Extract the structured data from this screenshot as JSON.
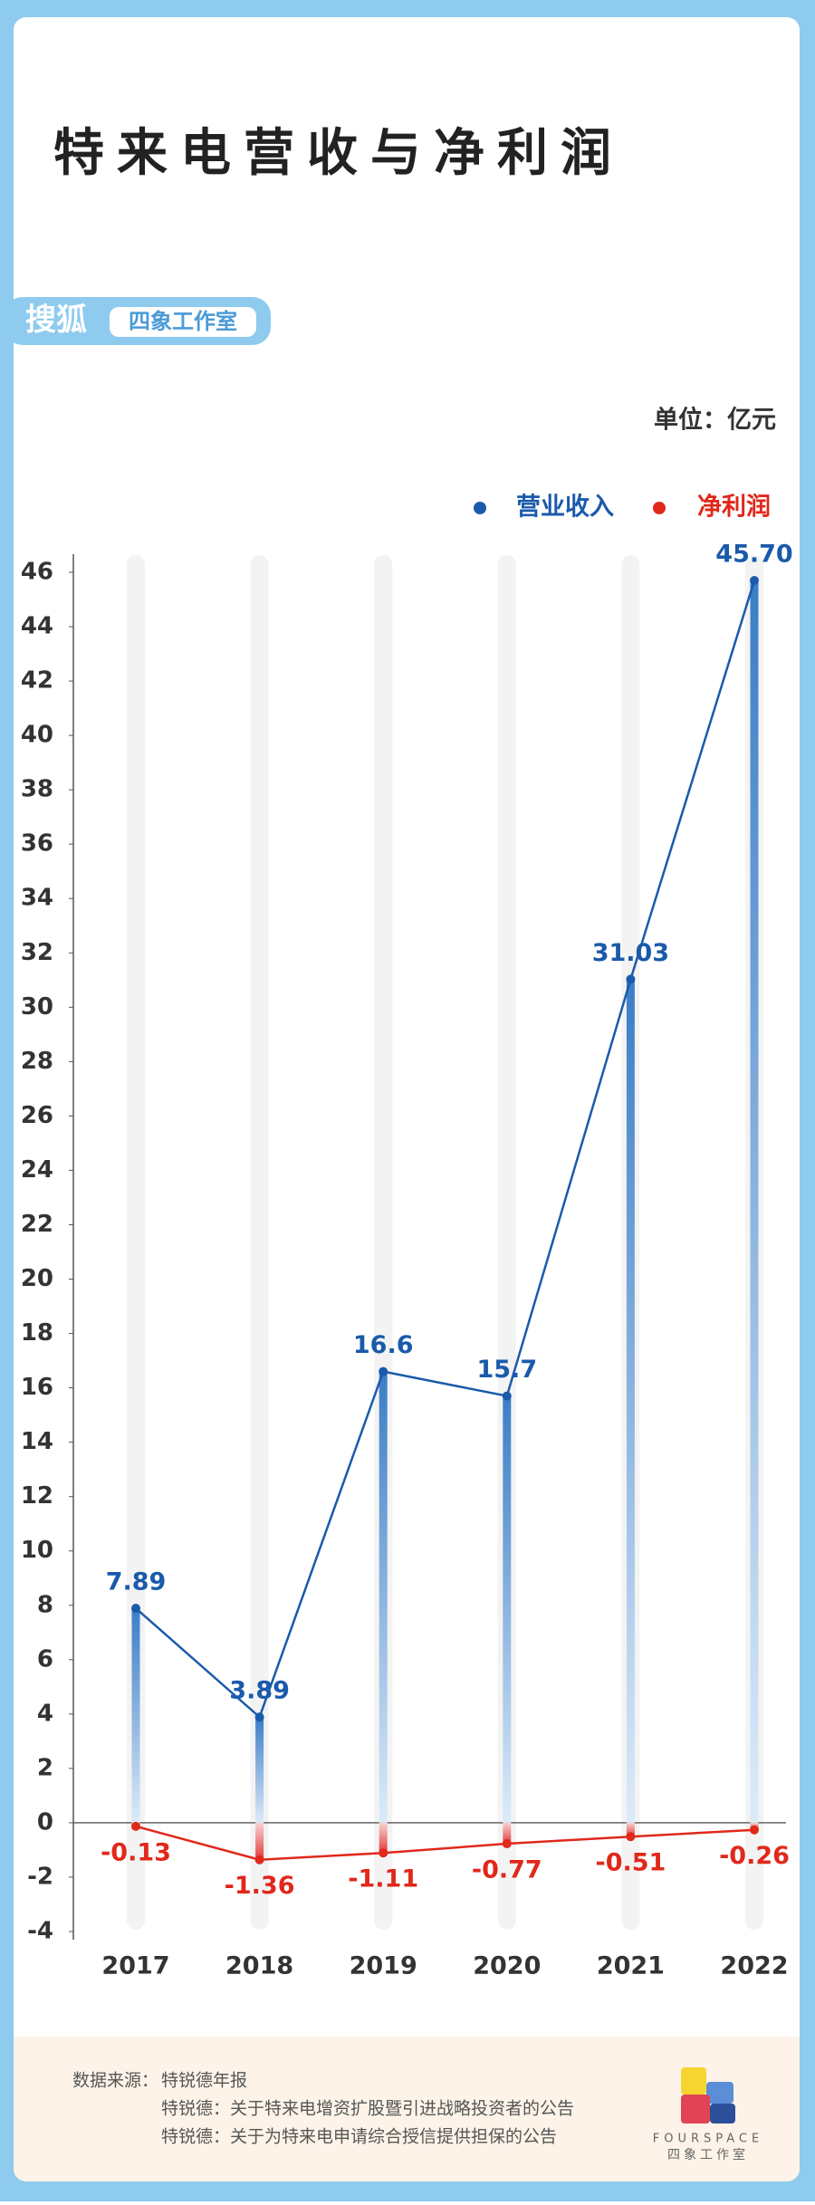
{
  "chart_data": {
    "type": "bar-line",
    "title": "特来电营收与净利润",
    "unit": "单位：亿元",
    "categories": [
      "2017",
      "2018",
      "2019",
      "2020",
      "2021",
      "2022"
    ],
    "series": [
      {
        "name": "营业收入",
        "color": "#1a5aab",
        "values": [
          7.89,
          3.89,
          16.6,
          15.7,
          31.03,
          45.7
        ],
        "value_labels": [
          "7.89",
          "3.89",
          "16.6",
          "15.7",
          "31.03",
          "45.70"
        ]
      },
      {
        "name": "净利润",
        "color": "#e0281b",
        "values": [
          -0.13,
          -1.36,
          -1.11,
          -0.77,
          -0.51,
          -0.26
        ]
      }
    ],
    "ylim": [
      -4,
      46
    ],
    "yticks": [
      -4,
      -2,
      0,
      2,
      4,
      6,
      8,
      10,
      12,
      14,
      16,
      18,
      20,
      22,
      24,
      26,
      28,
      30,
      32,
      34,
      36,
      38,
      40,
      42,
      44,
      46
    ],
    "legend": "top-right",
    "grid": false
  },
  "brand": {
    "source": "搜狐",
    "studio": "四象工作室"
  },
  "footer": {
    "label": "数据来源：",
    "sources": [
      "特锐德年报",
      "特锐德：关于特来电增资扩股暨引进战略投资者的公告",
      "特锐德：关于为特来电申请综合授信提供担保的公告"
    ]
  },
  "logo": {
    "name": "FOURSPACE",
    "subname": "四象工作室"
  }
}
